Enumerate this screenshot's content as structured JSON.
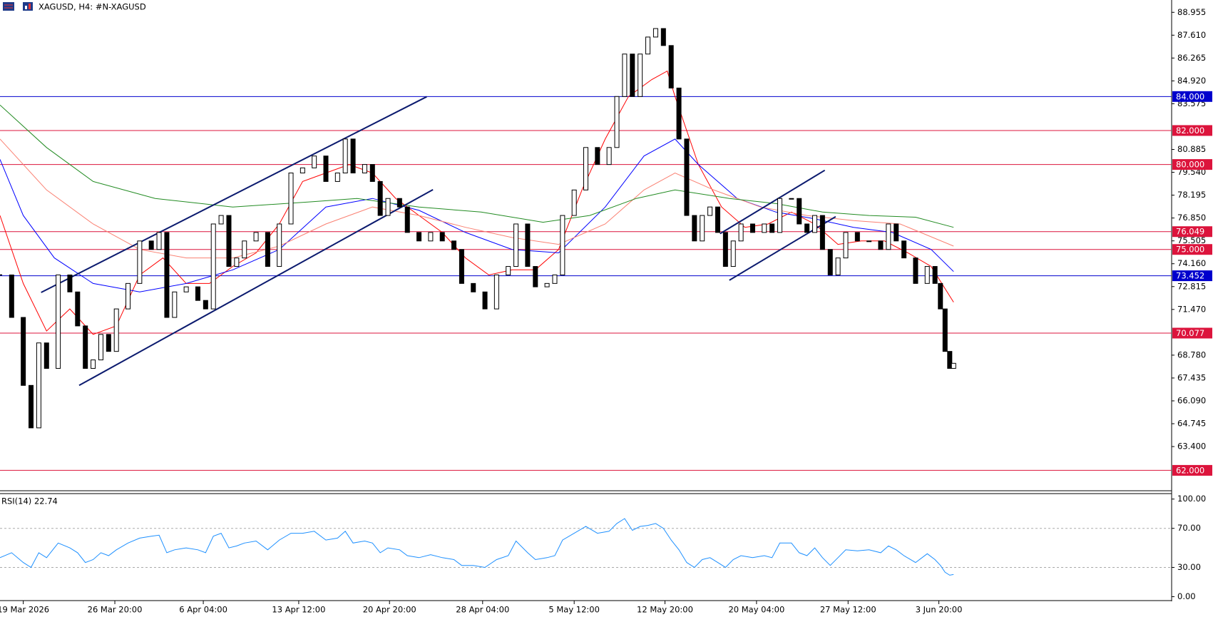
{
  "chart_data": [
    {
      "type": "candlestick",
      "title": "XAGUSD, H4:  #N-XAGUSD",
      "x": [
        0,
        3,
        6,
        8,
        10,
        12,
        15,
        18,
        20,
        22,
        24,
        26,
        28,
        30,
        33,
        36,
        39,
        41,
        43,
        45,
        48,
        51,
        53,
        55,
        57,
        59,
        61,
        63,
        66,
        69,
        72,
        75,
        78,
        81,
        84,
        87,
        89,
        91,
        94,
        96,
        98,
        100,
        103,
        105,
        108,
        111,
        114,
        117,
        119,
        122,
        125,
        128,
        131,
        133,
        136,
        138,
        141,
        143,
        145,
        148,
        151,
        154,
        157,
        159,
        161,
        163,
        165,
        167,
        169,
        171,
        173,
        175,
        177,
        179,
        181,
        183,
        185,
        187,
        189,
        191,
        194,
        197,
        199,
        201,
        204,
        206,
        208,
        210,
        212,
        214,
        216,
        218,
        221,
        224,
        227,
        229,
        231,
        233,
        236,
        239,
        241,
        242.4,
        243.6,
        244.8,
        245.8
      ],
      "values": [
        73.5,
        71.0,
        67.0,
        64.5,
        69.5,
        68.0,
        73.5,
        72.5,
        70.5,
        68.0,
        68.5,
        70.0,
        69.0,
        71.5,
        73.0,
        75.5,
        75.0,
        76.0,
        71.0,
        72.5,
        72.8,
        72.0,
        71.5,
        76.5,
        77.0,
        74.0,
        74.5,
        75.5,
        76.0,
        74.0,
        76.5,
        79.5,
        79.8,
        80.5,
        79.0,
        79.5,
        81.5,
        79.5,
        80.0,
        79.0,
        77.0,
        78.0,
        77.5,
        76.0,
        75.5,
        76.0,
        75.5,
        75.0,
        73.0,
        72.5,
        71.5,
        73.5,
        74.0,
        76.5,
        74.0,
        72.8,
        73.0,
        73.5,
        77.0,
        78.5,
        81.0,
        80.0,
        81.0,
        84.0,
        86.5,
        84.0,
        86.5,
        87.5,
        88.0,
        87.0,
        84.5,
        81.5,
        77.0,
        75.5,
        77.0,
        77.5,
        76.0,
        74.0,
        75.5,
        76.5,
        76.0,
        76.5,
        76.0,
        78.0,
        78.0,
        76.5,
        76.0,
        77.0,
        75.0,
        73.5,
        74.5,
        76.0,
        75.5,
        75.5,
        75.0,
        76.5,
        75.5,
        74.5,
        73.0,
        74.0,
        73.0,
        71.5,
        69.0,
        68.0,
        68.3
      ],
      "lines": [
        {
          "color": "#ff0000",
          "x": [
            0,
            6,
            12,
            18,
            24,
            30,
            36,
            42,
            48,
            54,
            60,
            66,
            72,
            78,
            84,
            90,
            96,
            102,
            108,
            114,
            120,
            126,
            132,
            138,
            144,
            150,
            156,
            162,
            168,
            172,
            174,
            180,
            186,
            192,
            198,
            204,
            210,
            216,
            222,
            228,
            234,
            240,
            245.8
          ],
          "values": [
            77,
            73,
            70.2,
            71.5,
            70,
            70.5,
            73.5,
            74.5,
            73,
            73,
            74,
            74.8,
            76.5,
            79,
            79.5,
            80,
            79.5,
            78,
            77,
            76,
            74.5,
            73.5,
            73.8,
            73.8,
            75,
            78.5,
            81.5,
            84,
            85,
            85.5,
            84,
            80,
            77.5,
            76.3,
            76.5,
            77.2,
            76.5,
            75.3,
            75.5,
            75.5,
            74.8,
            74,
            71.9
          ]
        },
        {
          "color": "#0000ff",
          "x": [
            0,
            6,
            14,
            24,
            36,
            48,
            60,
            72,
            84,
            96,
            108,
            120,
            132,
            144,
            156,
            166,
            174,
            180,
            190,
            200,
            210,
            220,
            230,
            240,
            245.8
          ],
          "values": [
            80.3,
            77,
            74.5,
            73,
            72.5,
            73,
            73.8,
            75,
            77.5,
            78,
            77.3,
            76,
            75,
            74.8,
            77.5,
            80.5,
            81.5,
            80,
            78,
            77.2,
            76.8,
            76.3,
            76,
            75,
            73.7
          ]
        },
        {
          "color": "#fa8072",
          "x": [
            0,
            12,
            24,
            36,
            48,
            60,
            72,
            84,
            96,
            108,
            120,
            132,
            144,
            156,
            166,
            174,
            184,
            196,
            208,
            220,
            232,
            245.8
          ],
          "values": [
            81.5,
            78.5,
            76.5,
            75,
            74.5,
            74.5,
            75.2,
            76.5,
            77.5,
            77,
            76.3,
            75.7,
            75.3,
            76.5,
            78.5,
            79.5,
            78.5,
            77.5,
            77,
            76.7,
            76.5,
            75.2
          ]
        },
        {
          "color": "#228b22",
          "x": [
            0,
            12,
            24,
            40,
            60,
            80,
            92,
            108,
            124,
            140,
            152,
            164,
            174,
            188,
            200,
            212,
            224,
            236,
            245.8
          ],
          "values": [
            83.5,
            81,
            79,
            78,
            77.5,
            77.8,
            78,
            77.5,
            77.2,
            76.6,
            77,
            78,
            78.5,
            78,
            77.7,
            77.2,
            77,
            76.9,
            76.3
          ]
        }
      ],
      "trendlines": [
        {
          "x": [
            10.6,
            110
          ],
          "values": [
            72.47,
            83.99
          ]
        },
        {
          "x": [
            20.4,
            111.6
          ],
          "values": [
            67.0,
            78.52
          ]
        },
        {
          "x": [
            185.6,
            212.6
          ],
          "values": [
            75.93,
            79.66
          ]
        },
        {
          "x": [
            188,
            215.4
          ],
          "values": [
            73.19,
            76.93
          ]
        }
      ],
      "levels": [
        {
          "value": 84,
          "label": "84.000",
          "color": "#0000cd"
        },
        {
          "value": 82,
          "label": "82.000",
          "color": "#dc143c"
        },
        {
          "value": 80,
          "label": "80.000",
          "color": "#dc143c"
        },
        {
          "value": 76.049,
          "label": "76.049",
          "color": "#dc143c"
        },
        {
          "value": 75,
          "label": "75.000",
          "color": "#dc143c"
        },
        {
          "value": 73.452,
          "label": "73.452",
          "color": "#0000cd"
        },
        {
          "value": 70.077,
          "label": "70.077",
          "color": "#dc143c"
        },
        {
          "value": 62,
          "label": "62.000",
          "color": "#dc143c"
        }
      ],
      "xlim": [
        0,
        302
      ],
      "xticks": [
        {
          "value": 6,
          "label": "19 Mar 2026"
        },
        {
          "value": 29.6,
          "label": "26 Mar 20:00"
        },
        {
          "value": 52.4,
          "label": "6 Apr 04:00"
        },
        {
          "value": 77,
          "label": "13 Apr 12:00"
        },
        {
          "value": 100.4,
          "label": "20 Apr 20:00"
        },
        {
          "value": 124.4,
          "label": "28 Apr 04:00"
        },
        {
          "value": 148,
          "label": "5 May 12:00"
        },
        {
          "value": 171.4,
          "label": "12 May 20:00"
        },
        {
          "value": 195,
          "label": "20 May 04:00"
        },
        {
          "value": 218.6,
          "label": "27 May 12:00"
        },
        {
          "value": 242,
          "label": "3 Jun 20:00"
        }
      ],
      "ylim": [
        60.8,
        89.68
      ],
      "yticks": [
        88.955,
        {
          "value": 87.61,
          "label": "87.610"
        },
        86.265,
        {
          "value": 84.92,
          "label": "84.920"
        },
        83.575,
        80.885,
        {
          "value": 79.54,
          "label": "79.540"
        },
        78.195,
        {
          "value": 76.85,
          "label": "76.850"
        },
        75.505,
        {
          "value": 74.16,
          "label": "74.160"
        },
        72.815,
        {
          "value": 71.47,
          "label": "71.470"
        },
        {
          "value": 68.78,
          "label": "68.780"
        },
        67.435,
        {
          "value": 66.09,
          "label": "66.090"
        },
        64.745,
        {
          "value": 63.4,
          "label": "63.400"
        }
      ]
    },
    {
      "type": "line",
      "title": "RSI(14) 22.74",
      "color": "#1e90ff",
      "x": [
        0,
        3,
        6,
        8,
        10,
        12,
        15,
        18,
        20,
        22,
        24,
        26,
        28,
        30,
        33,
        36,
        39,
        41,
        43,
        45,
        48,
        51,
        53,
        55,
        57,
        59,
        61,
        63,
        66,
        69,
        72,
        75,
        78,
        81,
        84,
        87,
        89,
        91,
        94,
        96,
        98,
        100,
        103,
        105,
        108,
        111,
        114,
        117,
        119,
        122,
        125,
        128,
        131,
        133,
        136,
        138,
        141,
        143,
        145,
        148,
        151,
        154,
        157,
        159,
        161,
        163,
        165,
        167,
        169,
        171,
        173,
        175,
        177,
        179,
        181,
        183,
        185,
        187,
        189,
        191,
        194,
        197,
        199,
        201,
        204,
        206,
        208,
        210,
        212,
        214,
        216,
        218,
        221,
        224,
        227,
        229,
        231,
        233,
        236,
        239,
        241,
        242.4,
        243.6,
        244.8,
        245.8
      ],
      "values": [
        40,
        45,
        35,
        30,
        45,
        40,
        55,
        50,
        45,
        35,
        38,
        45,
        42,
        48,
        55,
        60,
        62,
        63,
        45,
        48,
        50,
        48,
        45,
        62,
        65,
        50,
        52,
        55,
        57,
        48,
        58,
        65,
        65,
        67,
        58,
        60,
        67,
        55,
        57,
        55,
        45,
        50,
        48,
        42,
        40,
        43,
        40,
        38,
        32,
        32,
        30,
        38,
        42,
        57,
        45,
        38,
        40,
        42,
        58,
        65,
        72,
        65,
        67,
        75,
        80,
        68,
        72,
        73,
        75,
        70,
        58,
        48,
        35,
        30,
        38,
        40,
        35,
        30,
        38,
        42,
        40,
        42,
        40,
        55,
        55,
        45,
        42,
        50,
        40,
        32,
        40,
        48,
        47,
        48,
        45,
        52,
        48,
        42,
        35,
        44,
        38,
        32,
        25,
        22,
        22.74
      ],
      "xlim": [
        0,
        302
      ],
      "ylim": [
        -4,
        105.6
      ],
      "yticks": [
        {
          "value": 100,
          "label": "100.00"
        },
        {
          "value": 70,
          "label": "70.00"
        },
        {
          "value": 30,
          "label": "30.00"
        },
        {
          "value": 0,
          "label": "0.00"
        }
      ],
      "levels": [
        70,
        30
      ]
    }
  ]
}
